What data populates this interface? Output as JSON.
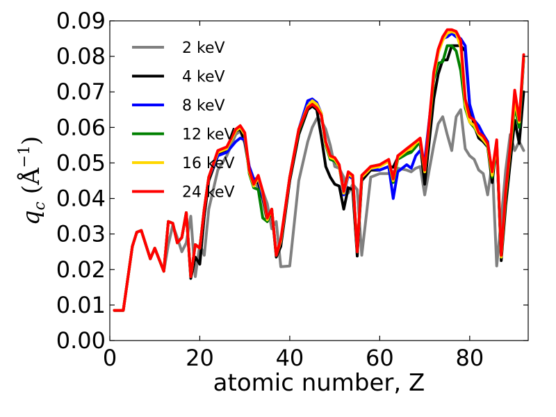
{
  "chart_data": {
    "type": "line",
    "xlabel": "atomic number, Z",
    "ylabel": "q_c (Å^-1)",
    "xlim": [
      0,
      93
    ],
    "ylim": [
      0.0,
      0.09
    ],
    "xticks": [
      "0",
      "20",
      "40",
      "60",
      "80"
    ],
    "yticks": [
      "0.00",
      "0.01",
      "0.02",
      "0.03",
      "0.04",
      "0.05",
      "0.06",
      "0.07",
      "0.08",
      "0.09"
    ],
    "grid": false,
    "legend_position": "top-left",
    "series": [
      {
        "name": "2 keV",
        "color": "#808080",
        "x": [
          1,
          3,
          5,
          6,
          7,
          9,
          10,
          12,
          13,
          14,
          15,
          16,
          17,
          18,
          19,
          20,
          21,
          22,
          24,
          26,
          28,
          29,
          30,
          31,
          32,
          33,
          34,
          35,
          36,
          37,
          38,
          40,
          42,
          44,
          45,
          46,
          47,
          48,
          49,
          50,
          51,
          52,
          53,
          54,
          55,
          56,
          58,
          60,
          62,
          63,
          64,
          66,
          67,
          68,
          69,
          70,
          72,
          73,
          74,
          75,
          76,
          77,
          78,
          79,
          80,
          81,
          82,
          83,
          84,
          85,
          86,
          87,
          88,
          89,
          90,
          91,
          92
        ],
        "y": [
          0.0085,
          0.0085,
          0.0265,
          0.0305,
          0.031,
          0.023,
          0.026,
          0.0195,
          0.027,
          0.0325,
          0.029,
          0.025,
          0.0275,
          0.035,
          0.018,
          0.027,
          0.024,
          0.037,
          0.048,
          0.052,
          0.058,
          0.059,
          0.0555,
          0.0485,
          0.045,
          0.043,
          0.042,
          0.0385,
          0.0315,
          0.0335,
          0.0208,
          0.021,
          0.045,
          0.056,
          0.06,
          0.0625,
          0.062,
          0.0595,
          0.055,
          0.049,
          0.0485,
          0.046,
          0.0415,
          0.044,
          0.0425,
          0.024,
          0.046,
          0.047,
          0.047,
          0.0475,
          0.0485,
          0.048,
          0.0475,
          0.0485,
          0.049,
          0.041,
          0.055,
          0.061,
          0.063,
          0.058,
          0.0535,
          0.063,
          0.065,
          0.054,
          0.052,
          0.051,
          0.048,
          0.047,
          0.041,
          0.05,
          0.021,
          0.034,
          0.048,
          0.058,
          0.0535,
          0.056,
          0.0535
        ]
      },
      {
        "name": "4 keV",
        "color": "#000000",
        "x": [
          1,
          3,
          5,
          6,
          7,
          9,
          10,
          12,
          13,
          14,
          15,
          16,
          17,
          18,
          19,
          20,
          21,
          22,
          24,
          26,
          28,
          29,
          30,
          31,
          32,
          33,
          34,
          35,
          36,
          37,
          38,
          40,
          42,
          44,
          45,
          46,
          47,
          48,
          49,
          50,
          51,
          52,
          53,
          54,
          55,
          56,
          58,
          60,
          62,
          63,
          64,
          66,
          67,
          68,
          69,
          70,
          72,
          73,
          74,
          75,
          76,
          77,
          78,
          79,
          80,
          81,
          82,
          83,
          84,
          85,
          86,
          87,
          88,
          89,
          90,
          91,
          92
        ],
        "y": [
          0.0085,
          0.0085,
          0.0265,
          0.0305,
          0.031,
          0.023,
          0.026,
          0.0195,
          0.0335,
          0.033,
          0.0275,
          0.029,
          0.036,
          0.0175,
          0.0235,
          0.0215,
          0.035,
          0.045,
          0.052,
          0.054,
          0.059,
          0.0595,
          0.056,
          0.048,
          0.0445,
          0.0445,
          0.04,
          0.0335,
          0.0365,
          0.0235,
          0.0265,
          0.045,
          0.058,
          0.065,
          0.066,
          0.065,
          0.0575,
          0.049,
          0.046,
          0.044,
          0.0435,
          0.037,
          0.043,
          0.0425,
          0.0238,
          0.045,
          0.048,
          0.048,
          0.049,
          0.0488,
          0.0515,
          0.053,
          0.054,
          0.055,
          0.0555,
          0.044,
          0.068,
          0.075,
          0.079,
          0.079,
          0.083,
          0.083,
          0.083,
          0.0815,
          0.066,
          0.0605,
          0.057,
          0.056,
          0.0545,
          0.0445,
          0.0555,
          0.0225,
          0.038,
          0.05,
          0.062,
          0.0555,
          0.07
        ]
      },
      {
        "name": "8 keV",
        "color": "#0000ff",
        "x": [
          1,
          3,
          5,
          6,
          7,
          9,
          10,
          12,
          13,
          14,
          15,
          16,
          17,
          18,
          19,
          20,
          21,
          22,
          24,
          26,
          28,
          29,
          30,
          31,
          32,
          33,
          34,
          35,
          36,
          37,
          38,
          40,
          42,
          44,
          45,
          46,
          47,
          48,
          49,
          50,
          51,
          52,
          53,
          54,
          55,
          56,
          58,
          60,
          62,
          63,
          64,
          66,
          67,
          68,
          69,
          70,
          72,
          73,
          74,
          75,
          76,
          77,
          78,
          79,
          80,
          81,
          82,
          83,
          84,
          85,
          86,
          87,
          88,
          89,
          90,
          91,
          92
        ],
        "y": [
          0.0085,
          0.0085,
          0.0265,
          0.0305,
          0.031,
          0.023,
          0.026,
          0.0195,
          0.0335,
          0.033,
          0.0275,
          0.029,
          0.036,
          0.018,
          0.027,
          0.026,
          0.037,
          0.046,
          0.052,
          0.053,
          0.056,
          0.057,
          0.0565,
          0.049,
          0.0455,
          0.0455,
          0.0405,
          0.0345,
          0.037,
          0.024,
          0.0278,
          0.046,
          0.0595,
          0.0675,
          0.068,
          0.067,
          0.064,
          0.0555,
          0.051,
          0.0505,
          0.049,
          0.041,
          0.0465,
          0.0455,
          0.025,
          0.046,
          0.0485,
          0.048,
          0.049,
          0.04,
          0.0475,
          0.0495,
          0.0485,
          0.052,
          0.0535,
          0.0505,
          0.0735,
          0.081,
          0.085,
          0.0855,
          0.0865,
          0.0855,
          0.085,
          0.083,
          0.0665,
          0.062,
          0.0605,
          0.058,
          0.056,
          0.0465,
          0.0555,
          0.0235,
          0.0415,
          0.054,
          0.0675,
          0.06,
          0.079
        ]
      },
      {
        "name": "12 keV",
        "color": "#008000",
        "x": [
          1,
          3,
          5,
          6,
          7,
          9,
          10,
          12,
          13,
          14,
          15,
          16,
          17,
          18,
          19,
          20,
          21,
          22,
          24,
          26,
          28,
          29,
          30,
          31,
          32,
          33,
          34,
          35,
          36,
          37,
          38,
          40,
          42,
          44,
          45,
          46,
          47,
          48,
          49,
          50,
          51,
          52,
          53,
          54,
          55,
          56,
          58,
          60,
          62,
          63,
          64,
          66,
          67,
          68,
          69,
          70,
          72,
          73,
          74,
          75,
          76,
          77,
          78,
          79,
          80,
          81,
          82,
          83,
          84,
          85,
          86,
          87,
          88,
          89,
          90,
          91,
          92
        ],
        "y": [
          0.0085,
          0.0085,
          0.0265,
          0.0305,
          0.031,
          0.023,
          0.026,
          0.0195,
          0.0335,
          0.033,
          0.0275,
          0.029,
          0.036,
          0.018,
          0.027,
          0.026,
          0.037,
          0.046,
          0.053,
          0.054,
          0.059,
          0.06,
          0.058,
          0.047,
          0.043,
          0.0425,
          0.0345,
          0.0335,
          0.037,
          0.024,
          0.028,
          0.046,
          0.059,
          0.0655,
          0.067,
          0.066,
          0.064,
          0.055,
          0.051,
          0.0505,
          0.049,
          0.042,
          0.047,
          0.046,
          0.025,
          0.046,
          0.049,
          0.0495,
          0.0505,
          0.0445,
          0.051,
          0.0525,
          0.053,
          0.0545,
          0.056,
          0.0475,
          0.0735,
          0.078,
          0.0785,
          0.083,
          0.083,
          0.0815,
          0.076,
          0.0655,
          0.0615,
          0.06,
          0.058,
          0.057,
          0.0545,
          0.046,
          0.056,
          0.0235,
          0.0405,
          0.0535,
          0.066,
          0.06,
          0.0795
        ]
      },
      {
        "name": "16 keV",
        "color": "#ffd700",
        "x": [
          1,
          3,
          5,
          6,
          7,
          9,
          10,
          12,
          13,
          14,
          15,
          16,
          17,
          18,
          19,
          20,
          21,
          22,
          24,
          26,
          28,
          29,
          30,
          31,
          32,
          33,
          34,
          35,
          36,
          37,
          38,
          40,
          42,
          44,
          45,
          46,
          47,
          48,
          49,
          50,
          51,
          52,
          53,
          54,
          55,
          56,
          58,
          60,
          62,
          63,
          64,
          66,
          67,
          68,
          69,
          70,
          72,
          73,
          74,
          75,
          76,
          77,
          78,
          79,
          80,
          81,
          82,
          83,
          84,
          85,
          86,
          87,
          88,
          89,
          90,
          91,
          92
        ],
        "y": [
          0.0085,
          0.0085,
          0.0265,
          0.0305,
          0.031,
          0.023,
          0.026,
          0.0195,
          0.0335,
          0.033,
          0.0275,
          0.029,
          0.036,
          0.018,
          0.027,
          0.026,
          0.037,
          0.046,
          0.053,
          0.054,
          0.059,
          0.06,
          0.058,
          0.0475,
          0.0435,
          0.046,
          0.0415,
          0.034,
          0.037,
          0.024,
          0.028,
          0.046,
          0.0595,
          0.066,
          0.0675,
          0.0665,
          0.064,
          0.0555,
          0.0515,
          0.051,
          0.049,
          0.0415,
          0.047,
          0.046,
          0.025,
          0.046,
          0.0485,
          0.049,
          0.0505,
          0.045,
          0.0515,
          0.0535,
          0.054,
          0.0555,
          0.0565,
          0.0475,
          0.0745,
          0.081,
          0.0845,
          0.0865,
          0.087,
          0.0865,
          0.0825,
          0.0665,
          0.0615,
          0.0605,
          0.058,
          0.0565,
          0.055,
          0.0465,
          0.056,
          0.0235,
          0.0415,
          0.054,
          0.0675,
          0.0615,
          0.0795
        ]
      },
      {
        "name": "24 keV",
        "color": "#ff0000",
        "x": [
          1,
          3,
          5,
          6,
          7,
          9,
          10,
          12,
          13,
          14,
          15,
          16,
          17,
          18,
          19,
          20,
          21,
          22,
          24,
          26,
          28,
          29,
          30,
          31,
          32,
          33,
          34,
          35,
          36,
          37,
          38,
          40,
          42,
          44,
          45,
          46,
          47,
          48,
          49,
          50,
          51,
          52,
          53,
          54,
          55,
          56,
          58,
          60,
          62,
          63,
          64,
          66,
          67,
          68,
          69,
          70,
          72,
          73,
          74,
          75,
          76,
          77,
          78,
          79,
          80,
          81,
          82,
          83,
          84,
          85,
          86,
          87,
          88,
          89,
          90,
          91,
          92
        ],
        "y": [
          0.0085,
          0.0085,
          0.0265,
          0.0305,
          0.031,
          0.023,
          0.026,
          0.0195,
          0.0335,
          0.033,
          0.0275,
          0.029,
          0.036,
          0.018,
          0.027,
          0.026,
          0.037,
          0.046,
          0.0535,
          0.0545,
          0.0595,
          0.0605,
          0.0585,
          0.048,
          0.044,
          0.0465,
          0.042,
          0.0345,
          0.037,
          0.024,
          0.0285,
          0.046,
          0.0595,
          0.0655,
          0.0665,
          0.0655,
          0.0635,
          0.056,
          0.052,
          0.0515,
          0.0495,
          0.042,
          0.0475,
          0.0465,
          0.025,
          0.0465,
          0.049,
          0.0495,
          0.051,
          0.0455,
          0.052,
          0.054,
          0.055,
          0.056,
          0.057,
          0.048,
          0.0755,
          0.082,
          0.0855,
          0.0875,
          0.0875,
          0.087,
          0.0845,
          0.068,
          0.063,
          0.062,
          0.0585,
          0.0575,
          0.0555,
          0.0475,
          0.0565,
          0.024,
          0.042,
          0.0545,
          0.0705,
          0.062,
          0.0805
        ]
      }
    ]
  }
}
